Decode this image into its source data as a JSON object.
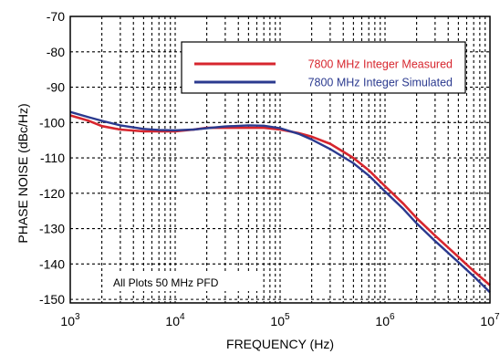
{
  "chart_data": {
    "type": "line",
    "xlabel": "FREQUENCY (Hz)",
    "ylabel": "PHASE NOISE (dBc/Hz)",
    "xscale": "log",
    "xlim": [
      1000,
      10000000
    ],
    "ylim": [
      -151,
      -70
    ],
    "grid": true,
    "legend_position": "top-right",
    "x_ticks": [
      {
        "value": 1000,
        "base": "10",
        "exp": "3"
      },
      {
        "value": 10000,
        "base": "10",
        "exp": "4"
      },
      {
        "value": 100000,
        "base": "10",
        "exp": "5"
      },
      {
        "value": 1000000,
        "base": "10",
        "exp": "6"
      },
      {
        "value": 10000000,
        "base": "10",
        "exp": "7"
      }
    ],
    "y_ticks": [
      -70,
      -80,
      -90,
      -100,
      -110,
      -120,
      -130,
      -140,
      -150
    ],
    "annotation": "All Plots 50 MHz PFD",
    "series": [
      {
        "name": "7800 MHz Integer Measured",
        "color": "#d7262e",
        "x": [
          1000,
          1500,
          2000,
          3000,
          5000,
          7000,
          10000,
          15000,
          20000,
          30000,
          50000,
          70000,
          100000,
          150000,
          200000,
          300000,
          500000,
          700000,
          1000000,
          1500000,
          2000000,
          3000000,
          5000000,
          7000000,
          10000000
        ],
        "y": [
          -98,
          -99.5,
          -101,
          -102,
          -102.5,
          -102.5,
          -102.5,
          -102,
          -101.5,
          -101.5,
          -101.5,
          -101.5,
          -102,
          -103,
          -104,
          -106,
          -110,
          -113.5,
          -118,
          -123,
          -127,
          -132,
          -138,
          -142,
          -146
        ]
      },
      {
        "name": "7800 MHz Integer Simulated",
        "color": "#2b3a8f",
        "x": [
          1000,
          1500,
          2000,
          3000,
          5000,
          7000,
          10000,
          15000,
          20000,
          30000,
          50000,
          70000,
          100000,
          150000,
          200000,
          300000,
          500000,
          700000,
          1000000,
          1500000,
          2000000,
          3000000,
          5000000,
          7000000,
          10000000
        ],
        "y": [
          -97,
          -98.5,
          -99.5,
          -100.8,
          -101.8,
          -102.1,
          -102.2,
          -102,
          -101.6,
          -101.1,
          -100.8,
          -100.9,
          -101.6,
          -103.2,
          -104.8,
          -107.5,
          -111.5,
          -115,
          -119.5,
          -124.5,
          -128.5,
          -133.5,
          -139.5,
          -143.5,
          -148
        ]
      }
    ]
  }
}
